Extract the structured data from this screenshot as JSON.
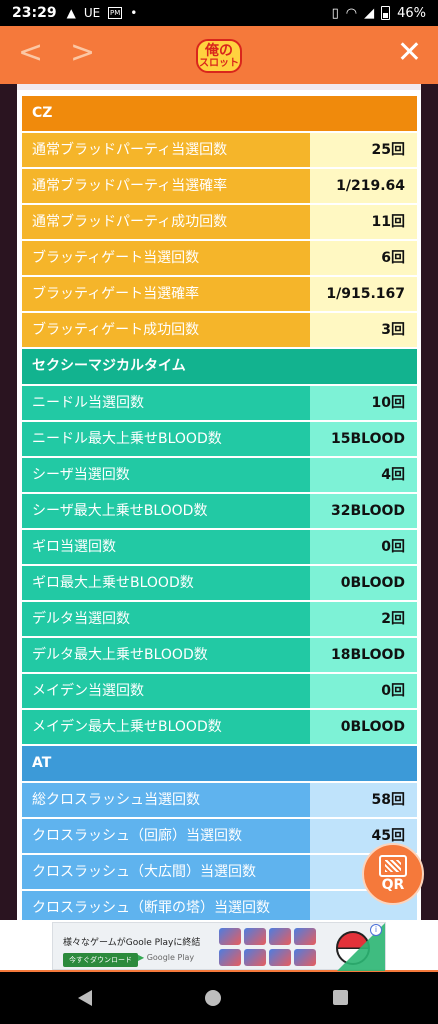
{
  "status": {
    "time": "23:29",
    "left_icons": [
      "▲",
      "UE",
      "PM",
      "•"
    ],
    "battery": "46%"
  },
  "appbar": {
    "back_glyph": "<",
    "forward_glyph": ">",
    "close_glyph": "✕",
    "logo_line1": "俺の",
    "logo_line2": "スロット"
  },
  "sections": {
    "cz": {
      "title": "CZ",
      "rows": [
        {
          "label": "通常ブラッドパーティ当選回数",
          "value": "25回"
        },
        {
          "label": "通常ブラッドパーティ当選確率",
          "value": "1/219.64"
        },
        {
          "label": "通常ブラッドパーティ成功回数",
          "value": "11回"
        },
        {
          "label": "ブラッティゲート当選回数",
          "value": "6回"
        },
        {
          "label": "ブラッティゲート当選確率",
          "value": "1/915.167"
        },
        {
          "label": "ブラッティゲート成功回数",
          "value": "3回"
        }
      ]
    },
    "smt": {
      "title": "セクシーマジカルタイム",
      "rows": [
        {
          "label": "ニードル当選回数",
          "value": "10回"
        },
        {
          "label": "ニードル最大上乗せBLOOD数",
          "value": "15BLOOD"
        },
        {
          "label": "シーザ当選回数",
          "value": "4回"
        },
        {
          "label": "シーザ最大上乗せBLOOD数",
          "value": "32BLOOD"
        },
        {
          "label": "ギロ当選回数",
          "value": "0回"
        },
        {
          "label": "ギロ最大上乗せBLOOD数",
          "value": "0BLOOD"
        },
        {
          "label": "デルタ当選回数",
          "value": "2回"
        },
        {
          "label": "デルタ最大上乗せBLOOD数",
          "value": "18BLOOD"
        },
        {
          "label": "メイデン当選回数",
          "value": "0回"
        },
        {
          "label": "メイデン最大上乗せBLOOD数",
          "value": "0BLOOD"
        }
      ]
    },
    "at": {
      "title": "AT",
      "rows": [
        {
          "label": "総クロスラッシュ当選回数",
          "value": "58回"
        },
        {
          "label": "クロスラッシュ（回廊）当選回数",
          "value": "45回"
        },
        {
          "label": "クロスラッシュ（大広間）当選回数",
          "value": ""
        },
        {
          "label": "クロスラッシュ（断罪の塔）当選回数",
          "value": ""
        }
      ]
    }
  },
  "qr_button": {
    "label": "QR"
  },
  "ad": {
    "title": "様々なゲームがGoole Playに終結",
    "cta": "今すぐダウンロード",
    "store": "Google Play",
    "info": "i"
  },
  "colors": {
    "appbar": "#f5793b",
    "cz_header": "#f08a0c",
    "smt_header": "#12b38f",
    "at_header": "#3c9ad8"
  }
}
